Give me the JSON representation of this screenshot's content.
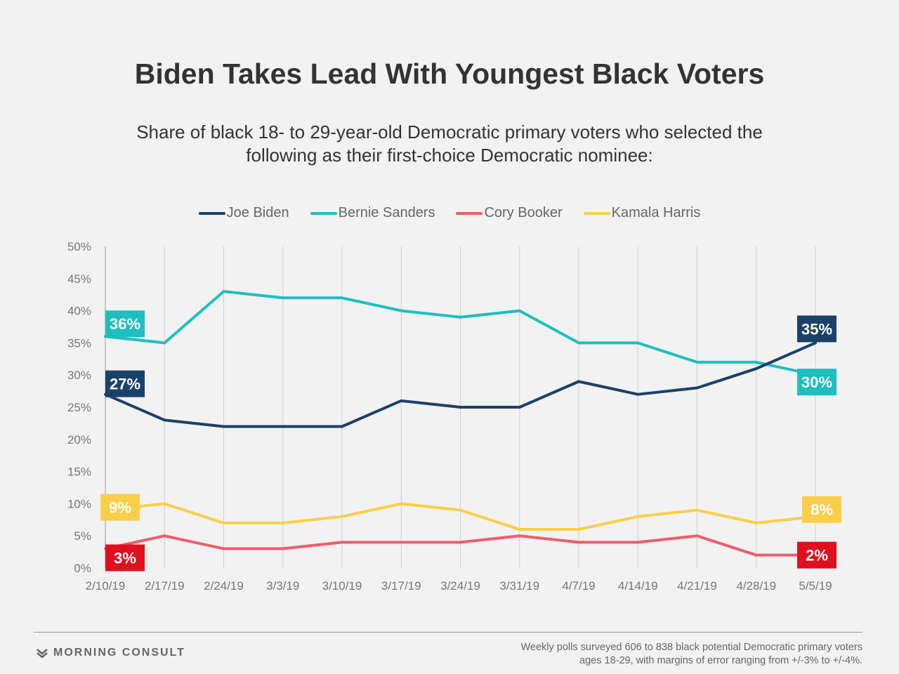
{
  "header": {
    "title": "Biden Takes Lead With Youngest Black Voters",
    "subtitle": "Share of black 18- to 29-year-old Democratic primary voters who selected the following as their first-choice Democratic nominee:"
  },
  "footer": {
    "brand": "MORNING CONSULT",
    "brand_icon": "morning-consult-logo-icon",
    "note": "Weekly polls surveyed 606 to 838 black potential Democratic primary voters ages 18-29, with margins of error ranging from +/-3% to +/-4%."
  },
  "chart_data": {
    "type": "line",
    "x": [
      "2/10/19",
      "2/17/19",
      "2/24/19",
      "3/3/19",
      "3/10/19",
      "3/17/19",
      "3/24/19",
      "3/31/19",
      "4/7/19",
      "4/14/19",
      "4/21/19",
      "4/28/19",
      "5/5/19"
    ],
    "ylim": [
      0,
      50
    ],
    "yticks": [
      0,
      5,
      10,
      15,
      20,
      25,
      30,
      35,
      40,
      45,
      50
    ],
    "ytick_labels": [
      "0%",
      "5%",
      "10%",
      "15%",
      "20%",
      "25%",
      "30%",
      "35%",
      "40%",
      "45%",
      "50%"
    ],
    "grid": "vertical",
    "legend_position": "top",
    "series": [
      {
        "name": "Joe Biden",
        "color": "#1b4168",
        "values": [
          27,
          23,
          22,
          22,
          22,
          26,
          25,
          25,
          29,
          27,
          28,
          31,
          35
        ],
        "start_label": "27%",
        "end_label": "35%"
      },
      {
        "name": "Bernie Sanders",
        "color": "#1ebfbf",
        "values": [
          36,
          35,
          43,
          42,
          42,
          40,
          39,
          40,
          35,
          35,
          32,
          32,
          30
        ],
        "start_label": "36%",
        "end_label": "30%"
      },
      {
        "name": "Cory Booker",
        "color": "#ef5d6b",
        "label_color": "#e0101f",
        "values": [
          3,
          5,
          3,
          3,
          4,
          4,
          4,
          5,
          4,
          4,
          5,
          2,
          2
        ],
        "start_label": "3%",
        "end_label": "2%"
      },
      {
        "name": "Kamala Harris",
        "color": "#f9cf4a",
        "values": [
          9,
          10,
          7,
          7,
          8,
          10,
          9,
          6,
          6,
          8,
          9,
          7,
          8
        ],
        "start_label": "9%",
        "end_label": "8%"
      }
    ]
  }
}
